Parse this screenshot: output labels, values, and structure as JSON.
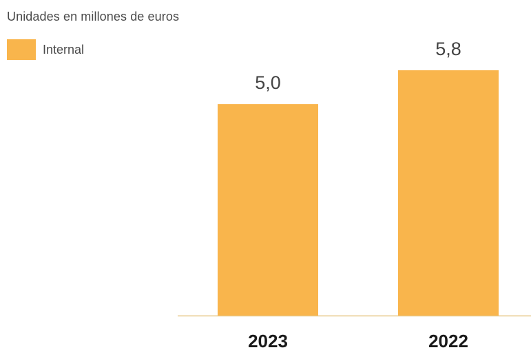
{
  "chart_data": {
    "type": "bar",
    "subtitle": "Unidades en millones de euros",
    "categories": [
      "2023",
      "2022"
    ],
    "series": [
      {
        "name": "Internal",
        "values": [
          5.0,
          5.8
        ],
        "value_labels": [
          "5,0",
          "5,8"
        ],
        "color": "#f9b54c"
      }
    ],
    "ylim": [
      0,
      5.8
    ],
    "grid": false,
    "legend": "top-left",
    "baseline_color": "#e8c98a"
  }
}
